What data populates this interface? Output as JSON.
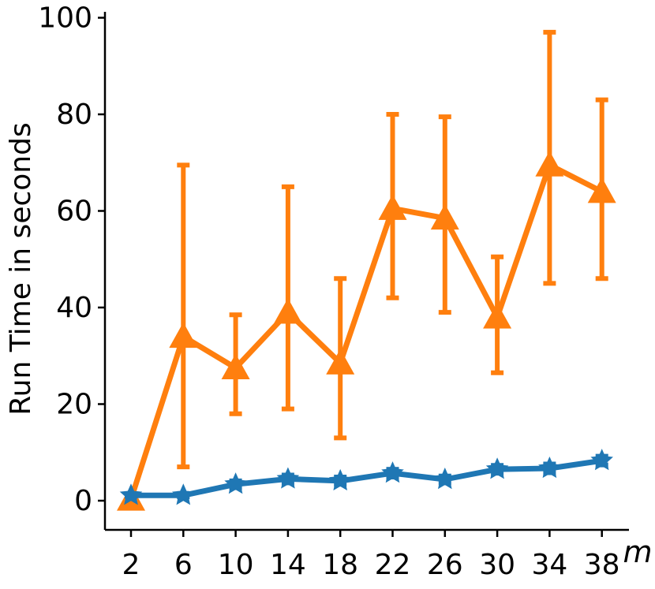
{
  "chart_data": {
    "type": "line",
    "xlabel": "m",
    "ylabel": "Run Time in seconds",
    "categories": [
      "2",
      "6",
      "10",
      "14",
      "18",
      "22",
      "26",
      "30",
      "34",
      "38"
    ],
    "x": [
      2,
      6,
      10,
      14,
      18,
      22,
      26,
      30,
      34,
      38
    ],
    "yticks": [
      "0",
      "20",
      "40",
      "60",
      "80",
      "100"
    ],
    "ylim": [
      -6,
      101
    ],
    "grid": false,
    "series": [
      {
        "color": "#ff7f0e",
        "marker": "triangle",
        "values": [
          0.3,
          34.0,
          27.5,
          39.0,
          28.5,
          60.5,
          58.5,
          38.0,
          69.5,
          64.0
        ],
        "err_low": [
          0.3,
          7.0,
          18.0,
          19.0,
          13.0,
          42.0,
          39.0,
          26.5,
          45.0,
          46.0
        ],
        "err_high": [
          0.3,
          69.5,
          38.5,
          65.0,
          46.0,
          80.0,
          79.5,
          50.5,
          97.0,
          83.0
        ]
      },
      {
        "color": "#1f77b4",
        "marker": "star",
        "values": [
          1.1,
          1.1,
          3.4,
          4.5,
          4.1,
          5.7,
          4.4,
          6.5,
          6.7,
          8.3
        ],
        "err_low": [
          0.9,
          0.8,
          2.7,
          3.7,
          3.4,
          4.9,
          3.7,
          5.7,
          5.8,
          7.4
        ],
        "err_high": [
          1.3,
          1.5,
          4.1,
          5.3,
          4.9,
          6.5,
          5.1,
          7.3,
          7.6,
          9.2
        ]
      }
    ]
  }
}
